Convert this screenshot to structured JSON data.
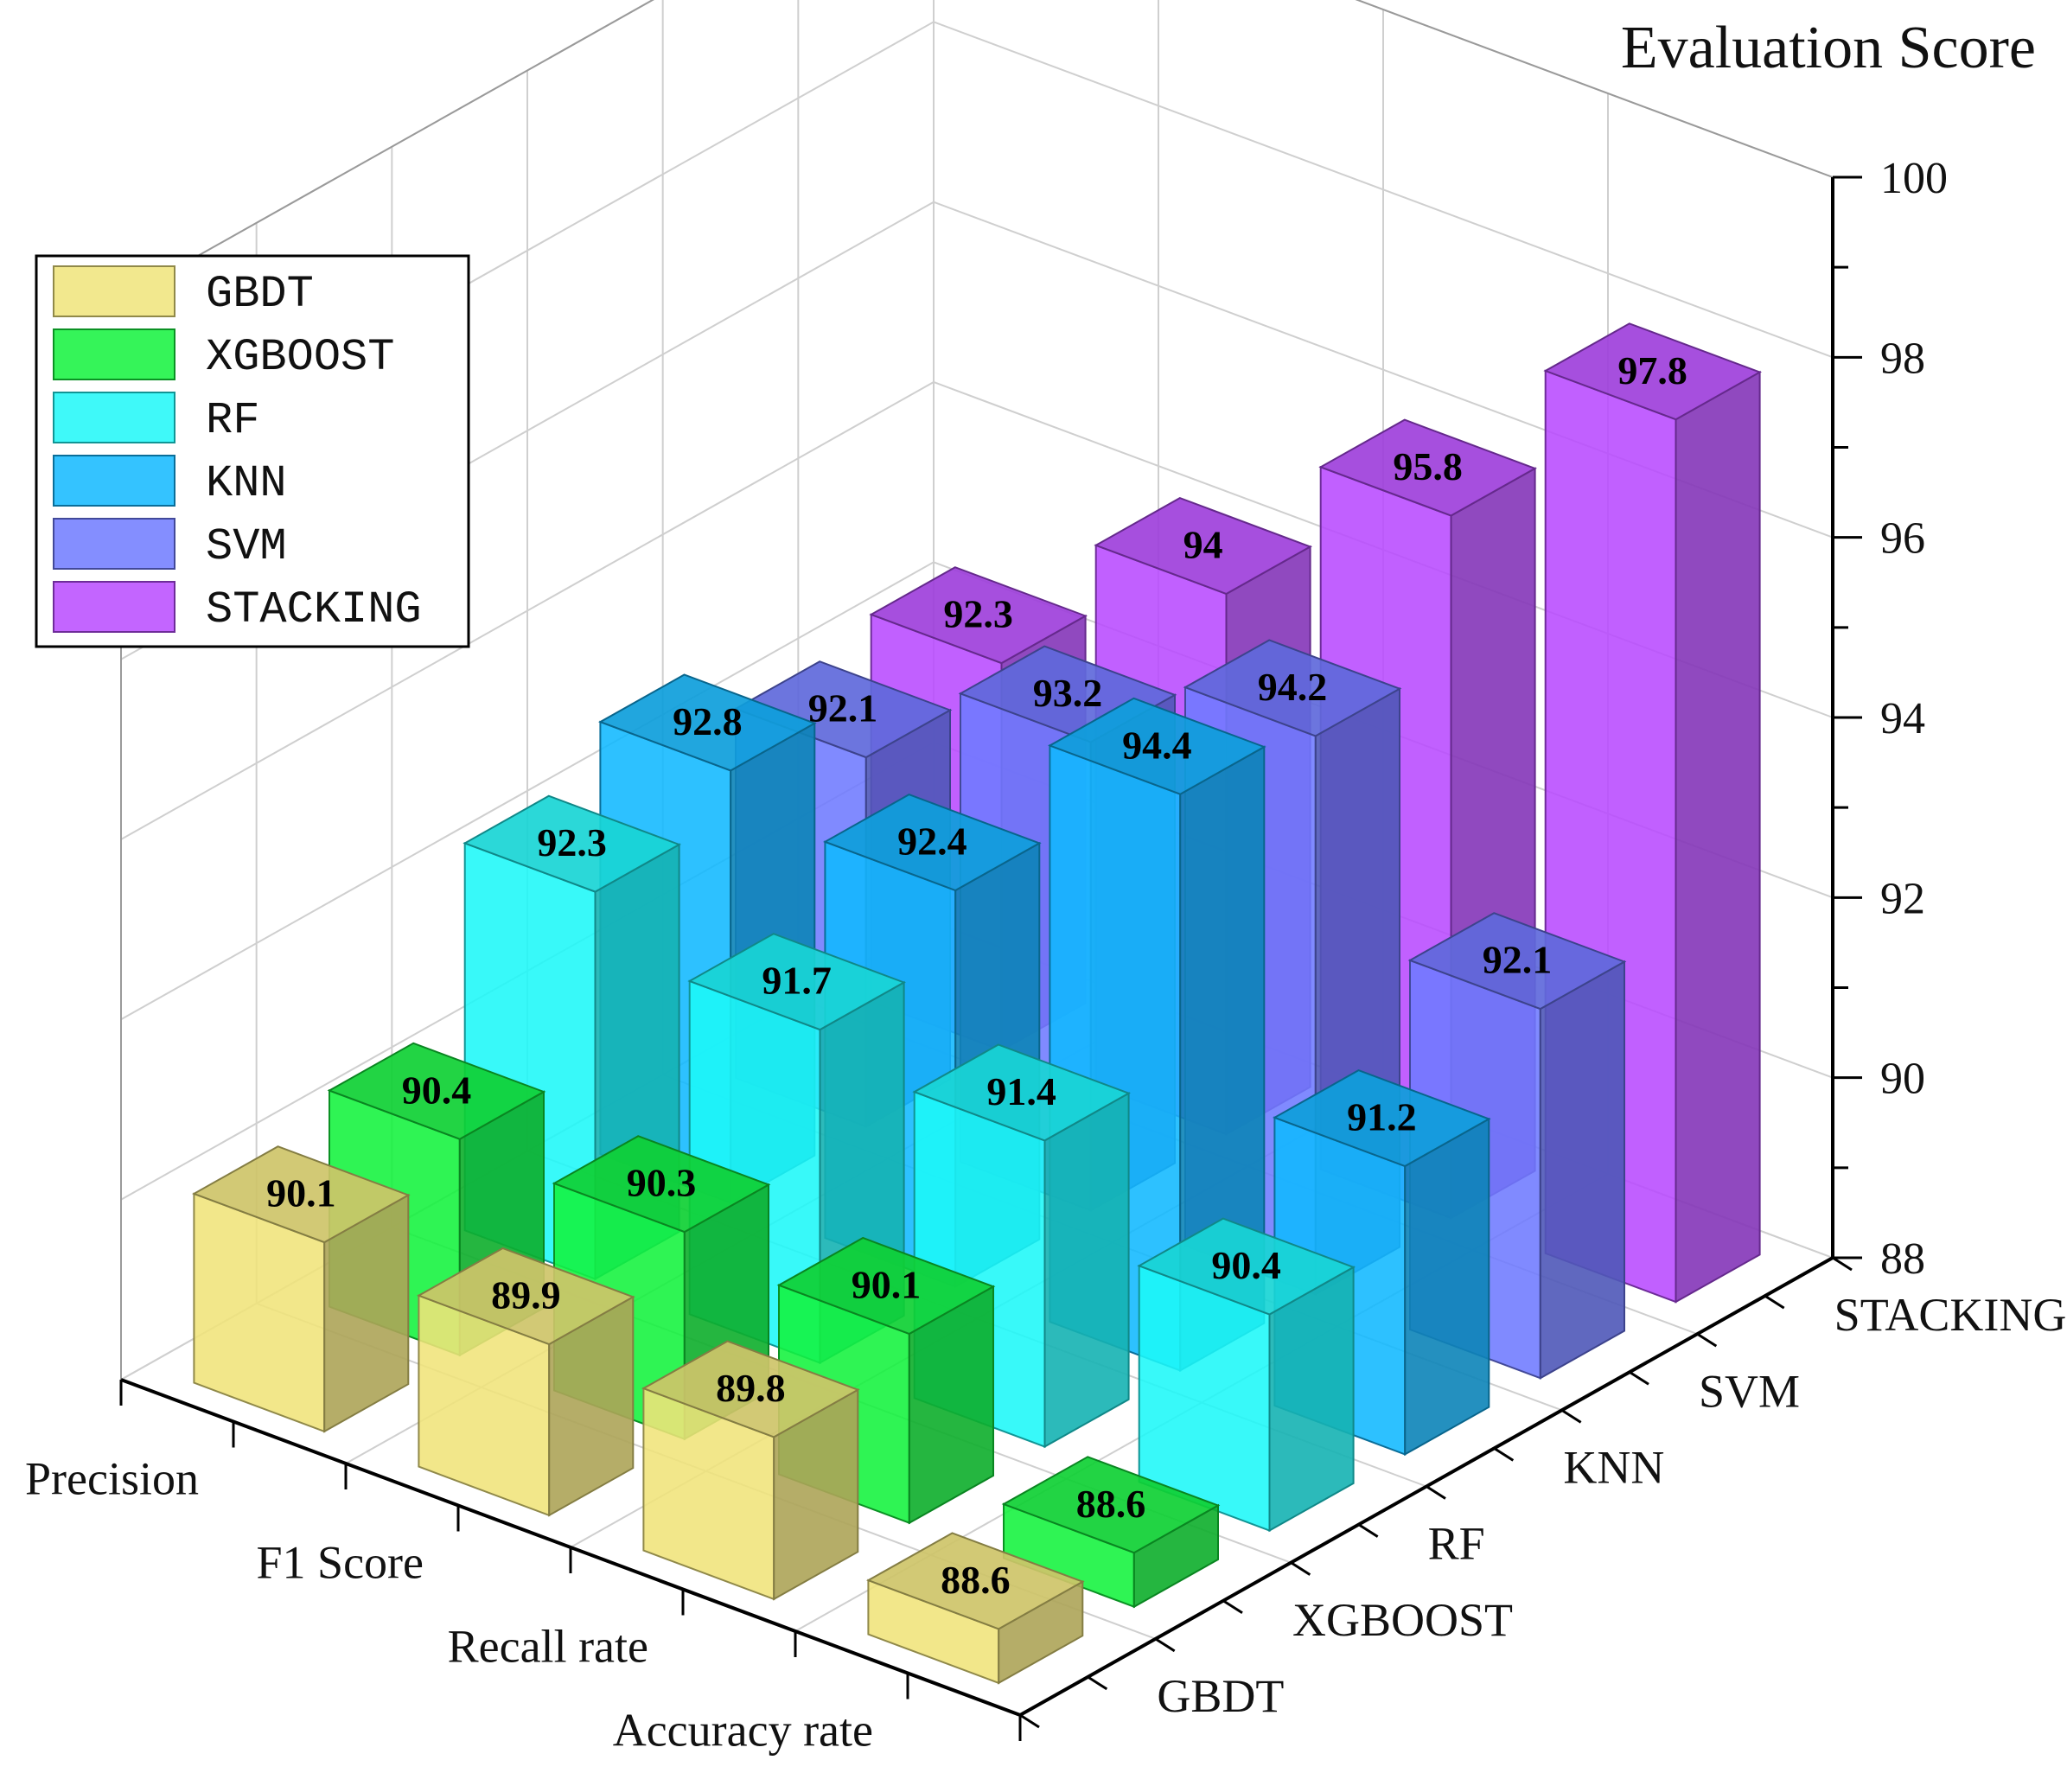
{
  "chart_data": {
    "type": "bar3d",
    "title": "Evaluation Score",
    "zlabel": "Evaluation Score",
    "zlim": [
      88,
      100
    ],
    "zticks": [
      88,
      90,
      92,
      94,
      96,
      98,
      100
    ],
    "metrics": [
      "Precision",
      "F1 Score",
      "Recall rate",
      "Accuracy rate"
    ],
    "models": [
      "GBDT",
      "XGBOOST",
      "RF",
      "KNN",
      "SVM",
      "STACKING"
    ],
    "legend_position": "top-left",
    "series": [
      {
        "name": "GBDT",
        "color": "#f0e47a",
        "values": [
          90.1,
          89.9,
          89.8,
          88.6
        ]
      },
      {
        "name": "XGBOOST",
        "color": "#12f23c",
        "values": [
          90.4,
          90.3,
          90.1,
          88.6
        ]
      },
      {
        "name": "RF",
        "color": "#1df8f8",
        "values": [
          92.3,
          91.7,
          91.4,
          90.4
        ]
      },
      {
        "name": "KNN",
        "color": "#10b8ff",
        "values": [
          92.8,
          92.4,
          94.4,
          91.2
        ]
      },
      {
        "name": "SVM",
        "color": "#6e7aff",
        "values": [
          92.1,
          93.2,
          94.2,
          92.1
        ]
      },
      {
        "name": "STACKING",
        "color": "#b84aff",
        "values": [
          92.3,
          94,
          95.8,
          97.8
        ]
      }
    ],
    "value_labels": [
      [
        "90.1",
        "89.9",
        "89.8",
        "88.6"
      ],
      [
        "90.4",
        "90.3",
        "90.1",
        "88.6"
      ],
      [
        "92.3",
        "91.7",
        "91.4",
        "90.4"
      ],
      [
        "92.8",
        "92.4",
        "94.4",
        "91.2"
      ],
      [
        "92.1",
        "93.2",
        "94.2",
        "92.1"
      ],
      [
        "92.3",
        "94",
        "95.8",
        "97.8"
      ]
    ]
  }
}
